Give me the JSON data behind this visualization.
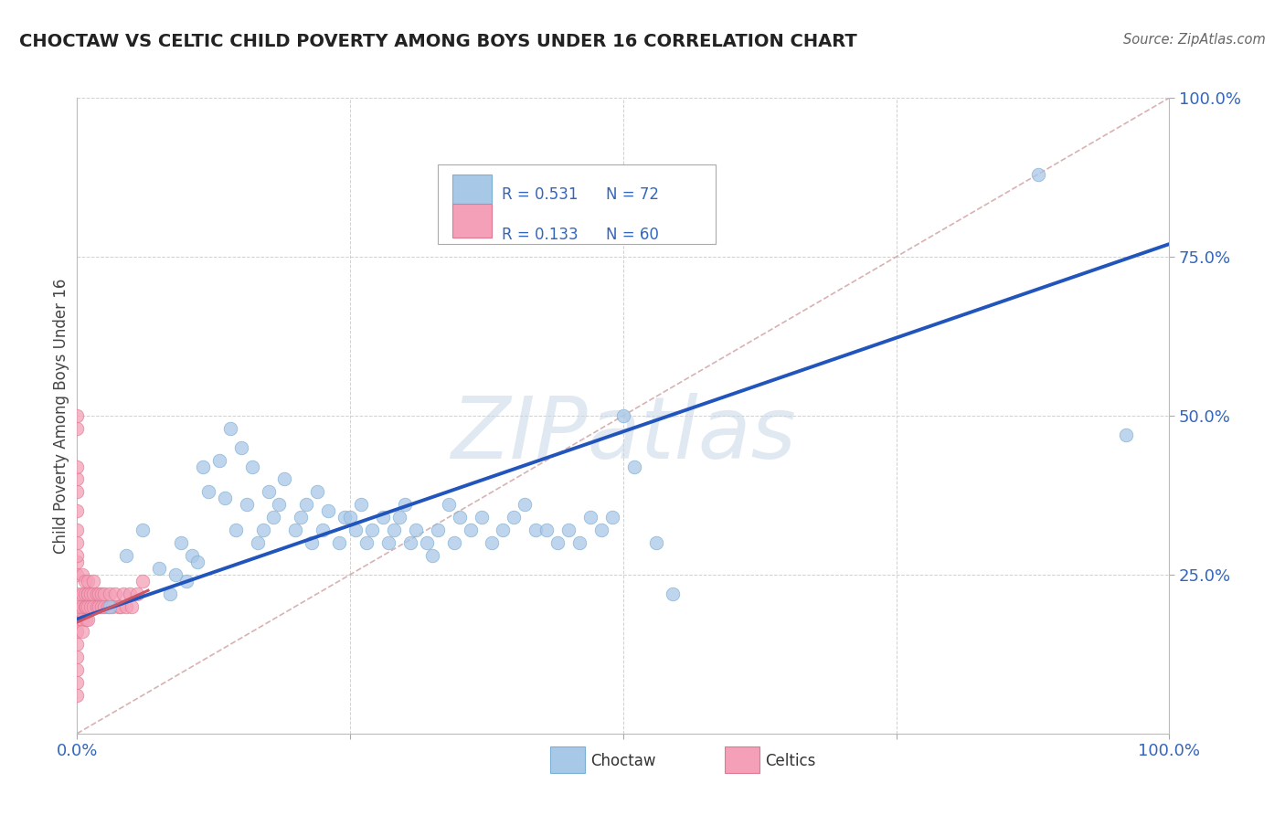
{
  "title": "CHOCTAW VS CELTIC CHILD POVERTY AMONG BOYS UNDER 16 CORRELATION CHART",
  "source": "Source: ZipAtlas.com",
  "ylabel": "Child Poverty Among Boys Under 16",
  "choctaw_color": "#a8c8e8",
  "choctaw_edge": "#7aafd4",
  "celtic_color": "#f4a0b8",
  "celtic_edge": "#e07890",
  "blue_line_color": "#2255bb",
  "pink_line_color": "#cc5566",
  "diag_line_color": "#d4aaaa",
  "watermark_color": "#c8d8e8",
  "background_color": "#ffffff",
  "choctaw_x": [
    0.03,
    0.045,
    0.06,
    0.075,
    0.085,
    0.09,
    0.095,
    0.1,
    0.105,
    0.11,
    0.115,
    0.12,
    0.13,
    0.135,
    0.14,
    0.145,
    0.15,
    0.155,
    0.16,
    0.165,
    0.17,
    0.175,
    0.18,
    0.185,
    0.19,
    0.2,
    0.205,
    0.21,
    0.215,
    0.22,
    0.225,
    0.23,
    0.24,
    0.245,
    0.25,
    0.255,
    0.26,
    0.265,
    0.27,
    0.28,
    0.285,
    0.29,
    0.295,
    0.3,
    0.305,
    0.31,
    0.32,
    0.325,
    0.33,
    0.34,
    0.345,
    0.35,
    0.36,
    0.37,
    0.38,
    0.39,
    0.4,
    0.41,
    0.42,
    0.43,
    0.44,
    0.45,
    0.46,
    0.47,
    0.48,
    0.49,
    0.5,
    0.51,
    0.53,
    0.545,
    0.88,
    0.96
  ],
  "choctaw_y": [
    0.2,
    0.28,
    0.32,
    0.26,
    0.22,
    0.25,
    0.3,
    0.24,
    0.28,
    0.27,
    0.42,
    0.38,
    0.43,
    0.37,
    0.48,
    0.32,
    0.45,
    0.36,
    0.42,
    0.3,
    0.32,
    0.38,
    0.34,
    0.36,
    0.4,
    0.32,
    0.34,
    0.36,
    0.3,
    0.38,
    0.32,
    0.35,
    0.3,
    0.34,
    0.34,
    0.32,
    0.36,
    0.3,
    0.32,
    0.34,
    0.3,
    0.32,
    0.34,
    0.36,
    0.3,
    0.32,
    0.3,
    0.28,
    0.32,
    0.36,
    0.3,
    0.34,
    0.32,
    0.34,
    0.3,
    0.32,
    0.34,
    0.36,
    0.32,
    0.32,
    0.3,
    0.32,
    0.3,
    0.34,
    0.32,
    0.34,
    0.5,
    0.42,
    0.3,
    0.22,
    0.88,
    0.47
  ],
  "celtic_x": [
    0.0,
    0.0,
    0.0,
    0.0,
    0.0,
    0.0,
    0.0,
    0.0,
    0.0,
    0.0,
    0.0,
    0.0,
    0.0,
    0.0,
    0.0,
    0.0,
    0.0,
    0.0,
    0.0,
    0.0,
    0.005,
    0.005,
    0.005,
    0.005,
    0.005,
    0.007,
    0.007,
    0.007,
    0.008,
    0.008,
    0.01,
    0.01,
    0.01,
    0.01,
    0.01,
    0.012,
    0.012,
    0.015,
    0.015,
    0.015,
    0.018,
    0.018,
    0.02,
    0.02,
    0.022,
    0.022,
    0.025,
    0.025,
    0.028,
    0.03,
    0.032,
    0.035,
    0.038,
    0.04,
    0.042,
    0.045,
    0.048,
    0.05,
    0.055,
    0.06
  ],
  "celtic_y": [
    0.2,
    0.22,
    0.25,
    0.27,
    0.3,
    0.32,
    0.35,
    0.38,
    0.4,
    0.42,
    0.18,
    0.16,
    0.14,
    0.12,
    0.1,
    0.08,
    0.06,
    0.28,
    0.48,
    0.5,
    0.2,
    0.22,
    0.25,
    0.18,
    0.16,
    0.2,
    0.22,
    0.24,
    0.18,
    0.2,
    0.22,
    0.24,
    0.2,
    0.22,
    0.18,
    0.2,
    0.22,
    0.2,
    0.22,
    0.24,
    0.2,
    0.22,
    0.2,
    0.22,
    0.2,
    0.22,
    0.2,
    0.22,
    0.2,
    0.22,
    0.2,
    0.22,
    0.2,
    0.2,
    0.22,
    0.2,
    0.22,
    0.2,
    0.22,
    0.24
  ],
  "choctaw_line_x": [
    0.0,
    1.0
  ],
  "choctaw_line_y": [
    0.18,
    0.77
  ],
  "celtic_line_x": [
    0.0,
    0.065
  ],
  "celtic_line_y": [
    0.175,
    0.225
  ],
  "diag_line_x": [
    0.0,
    1.0
  ],
  "diag_line_y": [
    0.0,
    1.0
  ],
  "xlim": [
    0.0,
    1.0
  ],
  "ylim": [
    0.0,
    1.0
  ],
  "ytick_vals": [
    0.25,
    0.5,
    0.75,
    1.0
  ],
  "ytick_labels": [
    "25.0%",
    "50.0%",
    "75.0%",
    "100.0%"
  ]
}
